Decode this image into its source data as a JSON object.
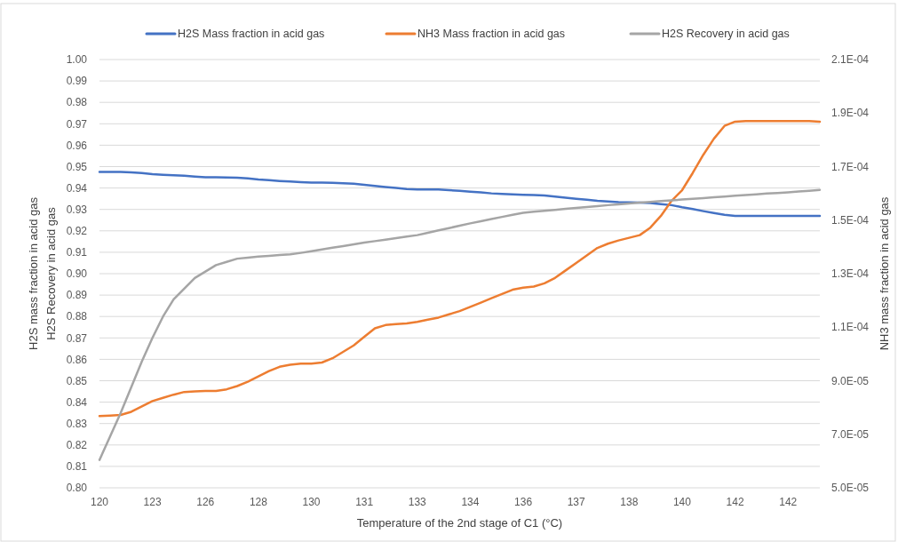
{
  "chart_data": {
    "type": "line",
    "xlabel": "Temperature of the 2nd stage of C1 (°C)",
    "ylabel": "H2S mass fraction in acid gas\nH2S Recovery in acid gas",
    "y2label": "NH3 mass fraction in acid gas",
    "categories": [
      "120",
      null,
      null,
      null,
      null,
      "123",
      null,
      null,
      null,
      null,
      "126",
      null,
      null,
      null,
      null,
      "128",
      null,
      null,
      null,
      null,
      "130",
      null,
      null,
      null,
      null,
      "131",
      null,
      null,
      null,
      null,
      "133",
      null,
      null,
      null,
      null,
      "134",
      null,
      null,
      null,
      null,
      "136",
      null,
      null,
      null,
      null,
      "137",
      null,
      null,
      null,
      null,
      "138",
      null,
      null,
      null,
      null,
      "140",
      null,
      null,
      null,
      null,
      "142",
      null,
      null,
      null,
      null,
      "142",
      null,
      null,
      null
    ],
    "ylim": [
      0.8,
      1.0
    ],
    "yticks": [
      {
        "value": 0.8,
        "label": "0.80"
      },
      {
        "value": 0.81,
        "label": "0.81"
      },
      {
        "value": 0.82,
        "label": "0.82"
      },
      {
        "value": 0.83,
        "label": "0.83"
      },
      {
        "value": 0.84,
        "label": "0.84"
      },
      {
        "value": 0.85,
        "label": "0.85"
      },
      {
        "value": 0.86,
        "label": "0.86"
      },
      {
        "value": 0.87,
        "label": "0.87"
      },
      {
        "value": 0.88,
        "label": "0.88"
      },
      {
        "value": 0.89,
        "label": "0.89"
      },
      {
        "value": 0.9,
        "label": "0.90"
      },
      {
        "value": 0.91,
        "label": "0.91"
      },
      {
        "value": 0.92,
        "label": "0.92"
      },
      {
        "value": 0.93,
        "label": "0.93"
      },
      {
        "value": 0.94,
        "label": "0.94"
      },
      {
        "value": 0.95,
        "label": "0.95"
      },
      {
        "value": 0.96,
        "label": "0.96"
      },
      {
        "value": 0.97,
        "label": "0.97"
      },
      {
        "value": 0.98,
        "label": "0.98"
      },
      {
        "value": 0.99,
        "label": "0.99"
      },
      {
        "value": 1.0,
        "label": "1.00"
      }
    ],
    "y2lim": [
      5e-05,
      0.00021
    ],
    "y2ticks": [
      {
        "value": 5e-05,
        "label": "5.0E-05"
      },
      {
        "value": 7e-05,
        "label": "7.0E-05"
      },
      {
        "value": 9e-05,
        "label": "9.0E-05"
      },
      {
        "value": 0.00011,
        "label": "1.1E-04"
      },
      {
        "value": 0.00013,
        "label": "1.3E-04"
      },
      {
        "value": 0.00015,
        "label": "1.5E-04"
      },
      {
        "value": 0.00017,
        "label": "1.7E-04"
      },
      {
        "value": 0.00019,
        "label": "1.9E-04"
      },
      {
        "value": 0.00021,
        "label": "2.1E-04"
      }
    ],
    "grid": "y",
    "legend": "top",
    "marker": "none",
    "line_style": "solid",
    "series": [
      {
        "name": "H2S Mass fraction in acid gas",
        "color": "#4472c4",
        "values": [
          0.9475,
          0.9475,
          0.9475,
          0.9473,
          0.947,
          0.9465,
          0.9462,
          0.946,
          0.9457,
          0.9453,
          0.945,
          0.945,
          0.9449,
          0.9448,
          0.9445,
          0.944,
          0.9437,
          0.9433,
          0.943,
          0.9427,
          0.9425,
          0.9425,
          0.9424,
          0.9422,
          0.942,
          0.9415,
          0.941,
          0.9405,
          0.94,
          0.9395,
          0.9393,
          0.9393,
          0.9393,
          0.939,
          0.9387,
          0.9383,
          0.938,
          0.9375,
          0.9372,
          0.937,
          0.9368,
          0.9367,
          0.9365,
          0.936,
          0.9355,
          0.935,
          0.9345,
          0.934,
          0.9337,
          0.9334,
          0.9333,
          0.9332,
          0.933,
          0.9325,
          0.932,
          0.931,
          0.9302,
          0.9292,
          0.9283,
          0.9275,
          0.927,
          0.927,
          0.927,
          0.927,
          0.927,
          0.927,
          0.927,
          0.927,
          0.927
        ]
      },
      {
        "name": "NH3 Mass fraction in acid gas",
        "color": "#ed7d31",
        "axis": "y2",
        "values": [
          7.68e-05,
          7.7e-05,
          7.72e-05,
          7.84e-05,
          8.04e-05,
          8.24e-05,
          8.36e-05,
          8.48e-05,
          8.58e-05,
          8.6e-05,
          8.62e-05,
          8.62e-05,
          8.68e-05,
          8.8e-05,
          8.96e-05,
          9.16e-05,
          9.36e-05,
          9.52e-05,
          9.6e-05,
          9.64e-05,
          9.64e-05,
          9.68e-05,
          9.84e-05,
          0.0001008,
          0.0001032,
          0.0001064,
          0.0001096,
          0.0001108,
          0.0001112,
          0.0001114,
          0.000112,
          0.0001128,
          0.0001136,
          0.0001148,
          0.000116,
          0.0001176,
          0.0001192,
          0.0001208,
          0.0001224,
          0.000124,
          0.0001248,
          0.0001252,
          0.0001264,
          0.0001284,
          0.0001312,
          0.000134,
          0.0001368,
          0.0001396,
          0.0001412,
          0.0001424,
          0.0001434,
          0.0001444,
          0.0001472,
          0.0001516,
          0.0001572,
          0.0001612,
          0.0001676,
          0.0001744,
          0.0001804,
          0.0001852,
          0.0001868,
          0.000187,
          0.000187,
          0.000187,
          0.000187,
          0.000187,
          0.000187,
          0.000187,
          0.0001868
        ]
      },
      {
        "name": "H2S Recovery in acid gas",
        "color": "#a5a5a5",
        "values": [
          0.813,
          0.824,
          0.835,
          0.847,
          0.859,
          0.87,
          0.88,
          0.888,
          0.893,
          0.898,
          0.901,
          0.904,
          0.9055,
          0.907,
          0.9075,
          0.908,
          0.9083,
          0.9087,
          0.909,
          0.9097,
          0.9105,
          0.9113,
          0.9121,
          0.9129,
          0.9137,
          0.9145,
          0.9152,
          0.9159,
          0.9166,
          0.9173,
          0.918,
          0.9191,
          0.9202,
          0.9213,
          0.9224,
          0.9235,
          0.9245,
          0.9255,
          0.9265,
          0.9275,
          0.9284,
          0.9289,
          0.9294,
          0.9298,
          0.9303,
          0.9307,
          0.9311,
          0.9315,
          0.932,
          0.9324,
          0.9328,
          0.9332,
          0.9335,
          0.9339,
          0.9342,
          0.9346,
          0.935,
          0.9353,
          0.9357,
          0.936,
          0.9364,
          0.9367,
          0.937,
          0.9374,
          0.9377,
          0.938,
          0.9384,
          0.9387,
          0.9391
        ]
      }
    ]
  }
}
